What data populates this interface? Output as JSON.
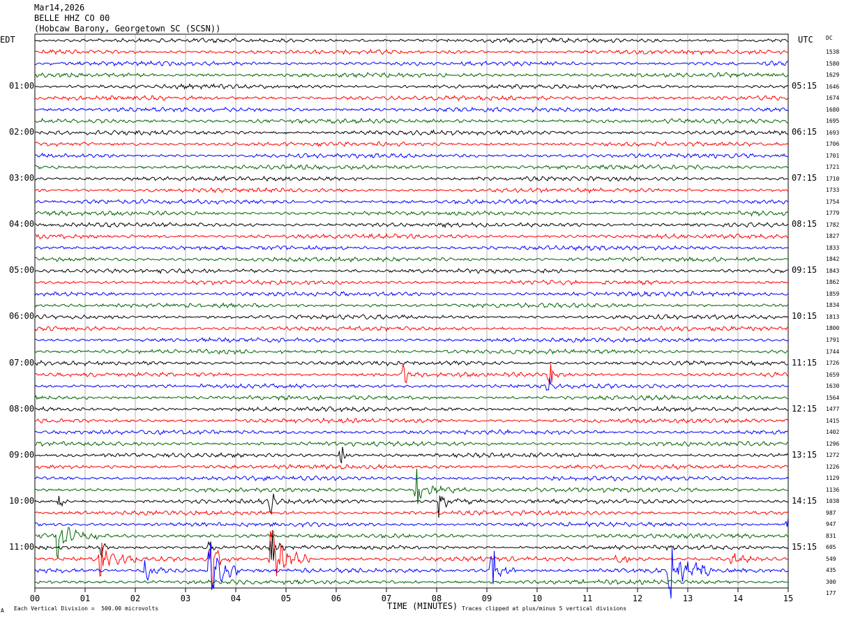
{
  "header": {
    "date": "Mar14,2026",
    "channel": "BELLE HHZ CO 00",
    "station": "(Hobcaw Barony, Georgetown SC (SCSN))"
  },
  "left_tz": "EDT",
  "right_tz": "UTC",
  "dc_header": "DC",
  "footer": {
    "scale_text": "Each Vertical Division =  500.00 microvolts",
    "xlabel": "TIME (MINUTES)",
    "clip_text": "Traces clipped at plus/minus 5 vertical divisions",
    "corner_mark": "A"
  },
  "colors": {
    "trace_cycle": [
      "#000000",
      "#ff0000",
      "#0000ff",
      "#006400"
    ],
    "grid": "#808080",
    "frame": "#000000"
  },
  "chart_data": {
    "type": "line",
    "title": "BELLE HHZ CO 00",
    "xlabel": "TIME (MINUTES)",
    "xlim": [
      0,
      15
    ],
    "x_ticks": [
      "00",
      "01",
      "02",
      "03",
      "04",
      "05",
      "06",
      "07",
      "08",
      "09",
      "10",
      "11",
      "12",
      "13",
      "14",
      "15"
    ],
    "minutes_per_trace": 15,
    "trace_count": 48,
    "local_hour_labels": [
      "",
      "01:00",
      "02:00",
      "03:00",
      "04:00",
      "05:00",
      "06:00",
      "07:00",
      "08:00",
      "09:00",
      "10:00",
      "11:00"
    ],
    "utc_hour_labels": [
      "",
      "05:15",
      "06:15",
      "07:15",
      "08:15",
      "09:15",
      "10:15",
      "11:15",
      "12:15",
      "13:15",
      "14:15",
      "15:15"
    ],
    "dc_offsets": [
      1538,
      1580,
      1629,
      1646,
      1674,
      1680,
      1695,
      1693,
      1706,
      1701,
      1721,
      1710,
      1733,
      1754,
      1779,
      1782,
      1827,
      1833,
      1842,
      1843,
      1862,
      1859,
      1834,
      1813,
      1800,
      1791,
      1744,
      1726,
      1659,
      1630,
      1564,
      1477,
      1415,
      1402,
      1296,
      1272,
      1226,
      1129,
      1136,
      1038,
      987,
      947,
      831,
      605,
      549,
      435,
      300,
      177
    ],
    "noise_amplitude_divisions": 0.35,
    "clip_divisions": 5,
    "events": [
      {
        "trace": 29,
        "minute": 7.35,
        "amplitude": 1.0,
        "duration": 0.1
      },
      {
        "trace": 29,
        "minute": 10.25,
        "amplitude": 1.0,
        "duration": 0.25
      },
      {
        "trace": 30,
        "minute": 10.2,
        "amplitude": 0.8,
        "duration": 0.2
      },
      {
        "trace": 36,
        "minute": 6.1,
        "amplitude": 1.2,
        "duration": 0.2
      },
      {
        "trace": 39,
        "minute": 7.6,
        "amplitude": 2.0,
        "duration": 1.0
      },
      {
        "trace": 40,
        "minute": 8.05,
        "amplitude": 1.6,
        "duration": 0.9
      },
      {
        "trace": 40,
        "minute": 0.5,
        "amplitude": 1.3,
        "duration": 0.2
      },
      {
        "trace": 40,
        "minute": 4.7,
        "amplitude": 1.0,
        "duration": 0.15
      },
      {
        "trace": 42,
        "minute": 15.0,
        "amplitude": 1.0,
        "duration": 0.4
      },
      {
        "trace": 43,
        "minute": 0.45,
        "amplitude": 2.4,
        "duration": 1.0
      },
      {
        "trace": 44,
        "minute": 1.3,
        "amplitude": 1.2,
        "duration": 0.3
      },
      {
        "trace": 44,
        "minute": 3.5,
        "amplitude": 1.2,
        "duration": 0.2
      },
      {
        "trace": 44,
        "minute": 4.7,
        "amplitude": 2.0,
        "duration": 0.3
      },
      {
        "trace": 45,
        "minute": 1.3,
        "amplitude": 2.5,
        "duration": 0.8
      },
      {
        "trace": 45,
        "minute": 3.5,
        "amplitude": 3.0,
        "duration": 0.5
      },
      {
        "trace": 45,
        "minute": 4.7,
        "amplitude": 5.0,
        "duration": 0.8
      },
      {
        "trace": 45,
        "minute": 11.5,
        "amplitude": 1.0,
        "duration": 1.0
      },
      {
        "trace": 45,
        "minute": 13.9,
        "amplitude": 1.0,
        "duration": 0.5
      },
      {
        "trace": 46,
        "minute": 2.2,
        "amplitude": 1.2,
        "duration": 0.8
      },
      {
        "trace": 46,
        "minute": 3.5,
        "amplitude": 5.0,
        "duration": 0.6
      },
      {
        "trace": 46,
        "minute": 9.1,
        "amplitude": 2.5,
        "duration": 0.5
      },
      {
        "trace": 46,
        "minute": 12.65,
        "amplitude": 5.0,
        "duration": 0.8
      }
    ]
  }
}
